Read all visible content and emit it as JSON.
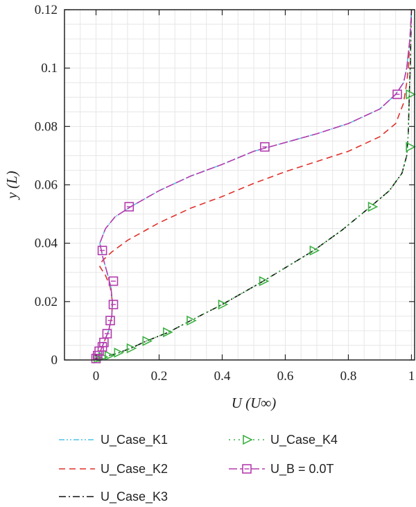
{
  "chart_data": {
    "type": "line",
    "xlabel": "U (U∞)",
    "ylabel": "y (L)",
    "xlim": [
      -0.1,
      1.01
    ],
    "ylim": [
      0,
      0.12
    ],
    "xticks": [
      "0",
      "0.2",
      "0.4",
      "0.6",
      "0.8",
      "1"
    ],
    "yticks": [
      "0",
      "0.02",
      "0.04",
      "0.06",
      "0.08",
      "0.1",
      "0.12"
    ],
    "grid": true,
    "legend_position": "bottom",
    "series": [
      {
        "name": "U_Case_K1",
        "color": "#4fc3e8",
        "dash": "dash-dot-dot",
        "points": [
          [
            0,
            0
          ],
          [
            0.01,
            0.002
          ],
          [
            0.025,
            0.006
          ],
          [
            0.04,
            0.01
          ],
          [
            0.05,
            0.015
          ],
          [
            0.052,
            0.02
          ],
          [
            0.047,
            0.025
          ],
          [
            0.035,
            0.03
          ],
          [
            0.022,
            0.035
          ],
          [
            0.012,
            0.04
          ],
          [
            0.03,
            0.045
          ],
          [
            0.06,
            0.049
          ],
          [
            0.11,
            0.0525
          ],
          [
            0.2,
            0.058
          ],
          [
            0.3,
            0.063
          ],
          [
            0.4,
            0.067
          ],
          [
            0.5,
            0.0715
          ],
          [
            0.6,
            0.0745
          ],
          [
            0.7,
            0.0775
          ],
          [
            0.8,
            0.081
          ],
          [
            0.9,
            0.086
          ],
          [
            0.95,
            0.091
          ],
          [
            0.975,
            0.095
          ],
          [
            0.985,
            0.1
          ],
          [
            0.99,
            0.105
          ],
          [
            0.995,
            0.11
          ],
          [
            0.998,
            0.115
          ],
          [
            1,
            0.12
          ]
        ]
      },
      {
        "name": "U_Case_K2",
        "color": "#e0312b",
        "dash": "dash",
        "points": [
          [
            0,
            0
          ],
          [
            0.01,
            0.002
          ],
          [
            0.025,
            0.006
          ],
          [
            0.04,
            0.01
          ],
          [
            0.05,
            0.015
          ],
          [
            0.052,
            0.02
          ],
          [
            0.045,
            0.025
          ],
          [
            0.03,
            0.029
          ],
          [
            0.012,
            0.032
          ],
          [
            0.02,
            0.034
          ],
          [
            0.05,
            0.037
          ],
          [
            0.1,
            0.041
          ],
          [
            0.2,
            0.047
          ],
          [
            0.3,
            0.052
          ],
          [
            0.4,
            0.056
          ],
          [
            0.5,
            0.0605
          ],
          [
            0.6,
            0.0645
          ],
          [
            0.7,
            0.068
          ],
          [
            0.8,
            0.0715
          ],
          [
            0.9,
            0.0765
          ],
          [
            0.95,
            0.081
          ],
          [
            0.975,
            0.088
          ],
          [
            0.985,
            0.095
          ],
          [
            0.99,
            0.1
          ],
          [
            0.995,
            0.11
          ],
          [
            1,
            0.12
          ]
        ]
      },
      {
        "name": "U_Case_K3",
        "color": "#111111",
        "dash": "dash-dot",
        "points": [
          [
            0,
            0
          ],
          [
            0.02,
            0.001
          ],
          [
            0.06,
            0.002
          ],
          [
            0.11,
            0.004
          ],
          [
            0.16,
            0.0065
          ],
          [
            0.23,
            0.0095
          ],
          [
            0.3,
            0.0135
          ],
          [
            0.4,
            0.019
          ],
          [
            0.53,
            0.027
          ],
          [
            0.69,
            0.0375
          ],
          [
            0.78,
            0.0445
          ],
          [
            0.87,
            0.0525
          ],
          [
            0.93,
            0.058
          ],
          [
            0.97,
            0.064
          ],
          [
            0.985,
            0.07
          ],
          [
            0.99,
            0.078
          ],
          [
            0.993,
            0.09
          ],
          [
            0.996,
            0.1
          ],
          [
            0.998,
            0.11
          ],
          [
            1,
            0.12
          ]
        ]
      },
      {
        "name": "U_Case_K4",
        "color": "#3cb043",
        "dash": "dot",
        "marker": "triangle",
        "markers": [
          [
            0.005,
            0.0005
          ],
          [
            0.02,
            0.001
          ],
          [
            0.04,
            0.0015
          ],
          [
            0.07,
            0.0025
          ],
          [
            0.11,
            0.004
          ],
          [
            0.16,
            0.0065
          ],
          [
            0.225,
            0.0095
          ],
          [
            0.3,
            0.0135
          ],
          [
            0.4,
            0.019
          ],
          [
            0.53,
            0.027
          ],
          [
            0.69,
            0.0375
          ],
          [
            0.875,
            0.0525
          ],
          [
            0.995,
            0.073
          ],
          [
            0.995,
            0.091
          ]
        ],
        "points": [
          [
            0,
            0
          ],
          [
            0.02,
            0.001
          ],
          [
            0.06,
            0.002
          ],
          [
            0.11,
            0.004
          ],
          [
            0.16,
            0.0065
          ],
          [
            0.23,
            0.0095
          ],
          [
            0.3,
            0.0135
          ],
          [
            0.4,
            0.019
          ],
          [
            0.53,
            0.027
          ],
          [
            0.69,
            0.0375
          ],
          [
            0.78,
            0.0445
          ],
          [
            0.87,
            0.0525
          ],
          [
            0.93,
            0.058
          ],
          [
            0.97,
            0.064
          ],
          [
            0.985,
            0.07
          ],
          [
            0.99,
            0.078
          ],
          [
            0.993,
            0.09
          ],
          [
            0.996,
            0.1
          ],
          [
            0.998,
            0.11
          ],
          [
            1,
            0.12
          ]
        ]
      },
      {
        "name": "U_B = 0.0T",
        "color": "#b43cae",
        "dash": "longdash",
        "marker": "square",
        "markers": [
          [
            0,
            0.0005
          ],
          [
            0.005,
            0.0015
          ],
          [
            0.01,
            0.003
          ],
          [
            0.02,
            0.0045
          ],
          [
            0.025,
            0.006
          ],
          [
            0.035,
            0.009
          ],
          [
            0.045,
            0.0135
          ],
          [
            0.055,
            0.019
          ],
          [
            0.055,
            0.027
          ],
          [
            0.02,
            0.0375
          ],
          [
            0.105,
            0.0525
          ],
          [
            0.535,
            0.073
          ],
          [
            0.955,
            0.091
          ]
        ],
        "points": [
          [
            0,
            0
          ],
          [
            0.01,
            0.002
          ],
          [
            0.025,
            0.006
          ],
          [
            0.04,
            0.01
          ],
          [
            0.05,
            0.015
          ],
          [
            0.052,
            0.02
          ],
          [
            0.047,
            0.025
          ],
          [
            0.035,
            0.03
          ],
          [
            0.022,
            0.035
          ],
          [
            0.012,
            0.04
          ],
          [
            0.03,
            0.045
          ],
          [
            0.06,
            0.049
          ],
          [
            0.11,
            0.0525
          ],
          [
            0.2,
            0.058
          ],
          [
            0.3,
            0.063
          ],
          [
            0.4,
            0.067
          ],
          [
            0.5,
            0.0715
          ],
          [
            0.6,
            0.0745
          ],
          [
            0.7,
            0.0775
          ],
          [
            0.8,
            0.081
          ],
          [
            0.9,
            0.086
          ],
          [
            0.95,
            0.091
          ],
          [
            0.975,
            0.095
          ],
          [
            0.985,
            0.1
          ],
          [
            0.99,
            0.105
          ],
          [
            0.995,
            0.11
          ],
          [
            0.998,
            0.115
          ],
          [
            1,
            0.12
          ]
        ]
      }
    ]
  }
}
